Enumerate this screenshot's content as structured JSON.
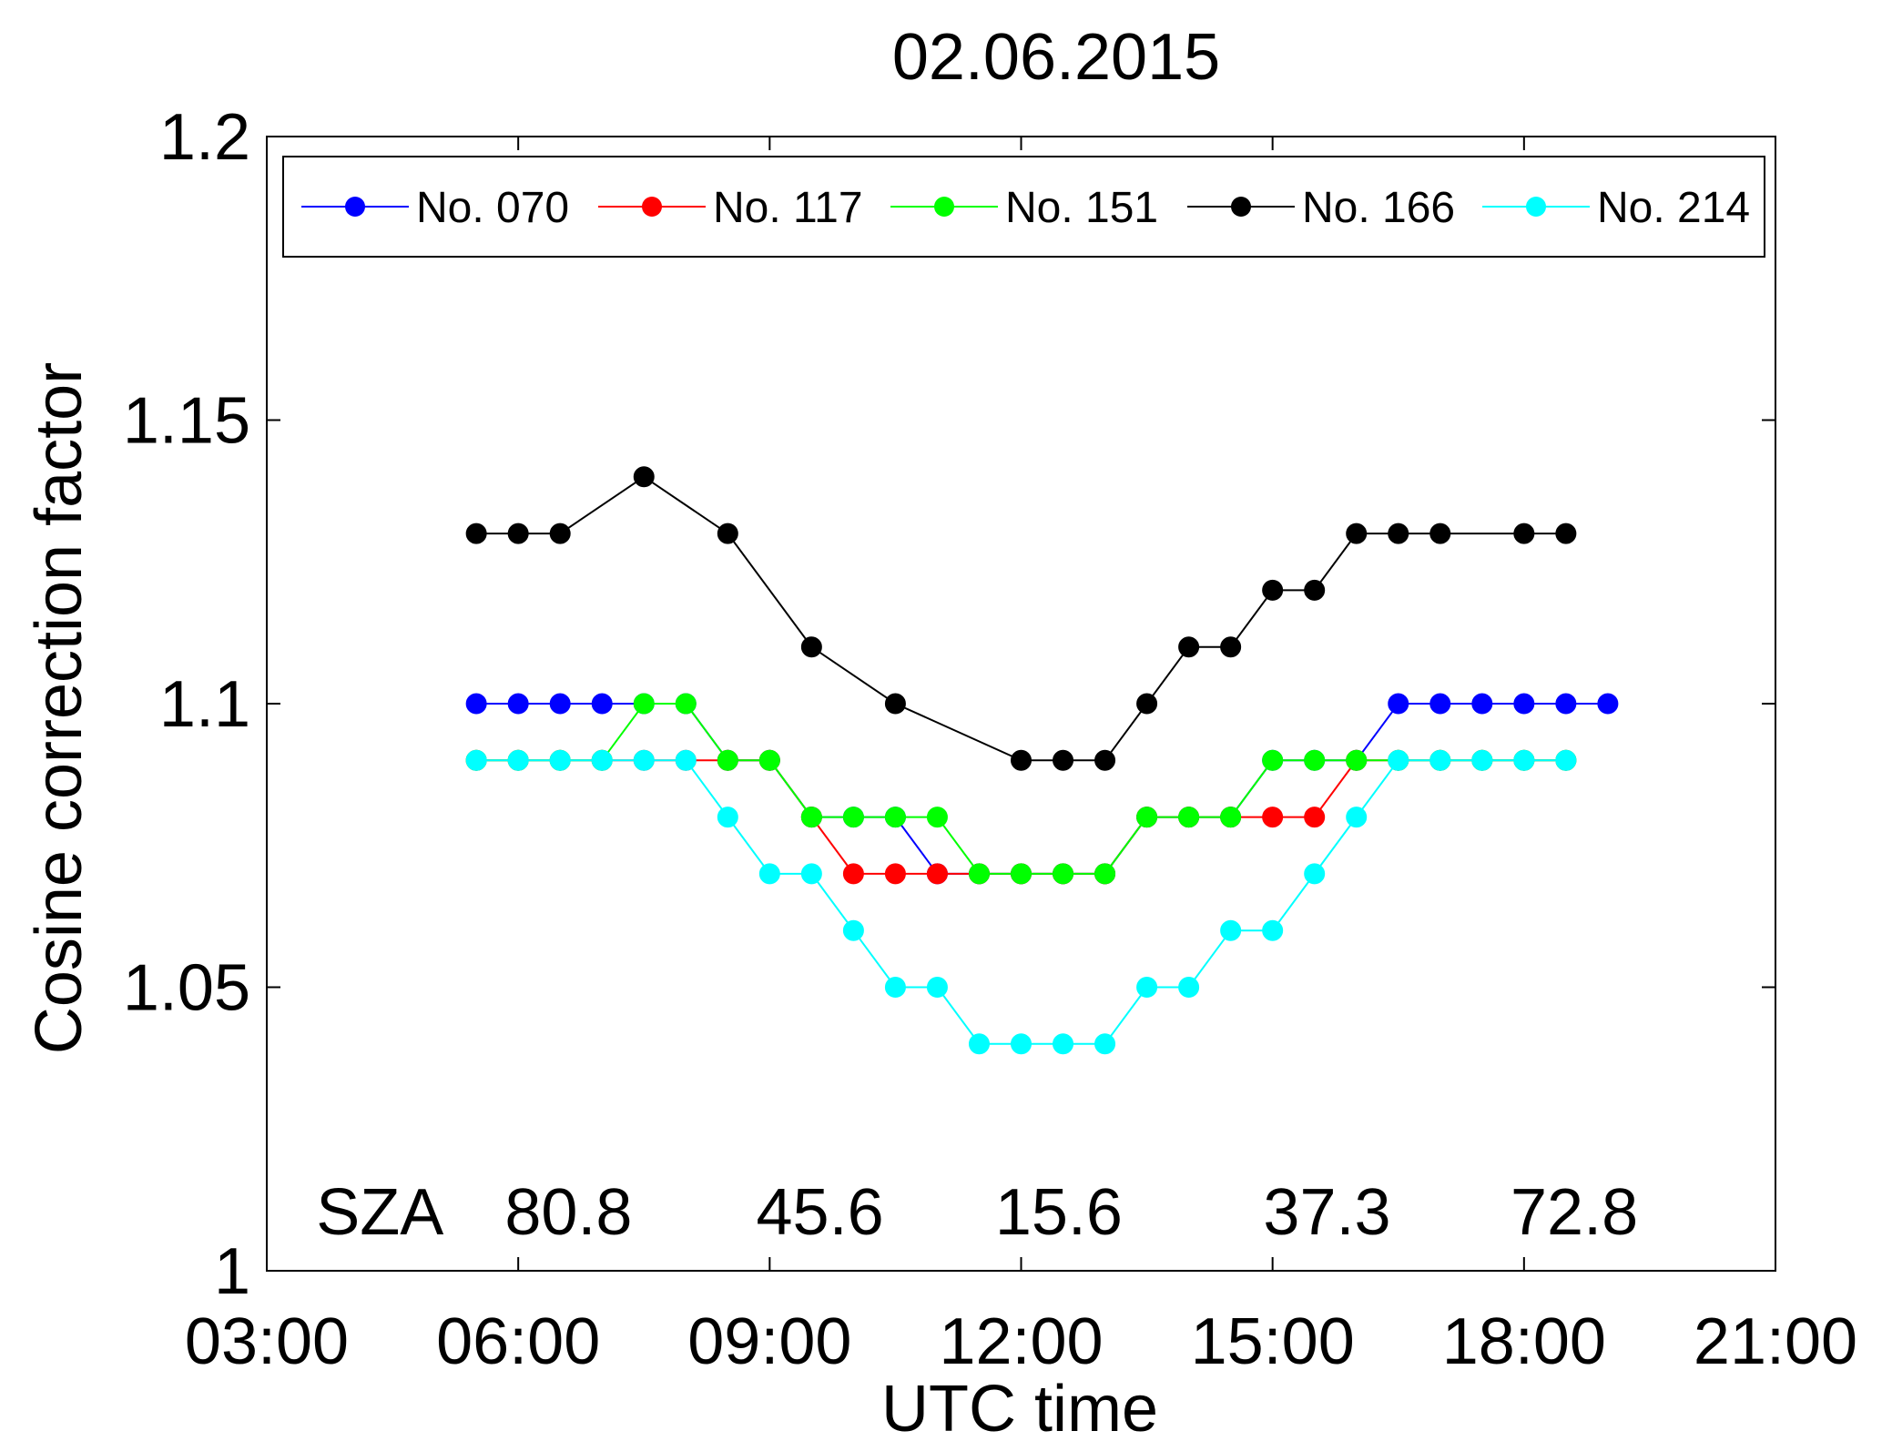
{
  "chart_data": {
    "type": "line",
    "title": "02.06.2015",
    "xlabel": "UTC time",
    "ylabel": "Cosine correction factor",
    "xlim": [
      3,
      21
    ],
    "ylim": [
      1.0,
      1.2
    ],
    "x_ticks": [
      3,
      6,
      9,
      12,
      15,
      18,
      21
    ],
    "x_tick_labels": [
      "03:00",
      "06:00",
      "09:00",
      "12:00",
      "15:00",
      "18:00",
      "21:00"
    ],
    "y_ticks": [
      1.0,
      1.05,
      1.1,
      1.15,
      1.2
    ],
    "y_tick_labels": [
      "1",
      "1.05",
      "1.1",
      "1.15",
      "1.2"
    ],
    "grid": false,
    "legend_position": "top",
    "sza_annotations": [
      {
        "text": "SZA",
        "x": 4.35
      },
      {
        "text": "80.8",
        "x": 6.6
      },
      {
        "text": "45.6",
        "x": 9.6
      },
      {
        "text": "15.6",
        "x": 12.45
      },
      {
        "text": "37.3",
        "x": 15.65
      },
      {
        "text": "72.8",
        "x": 18.6
      }
    ],
    "series": [
      {
        "name": "No. 070",
        "color": "#0000ff",
        "x": [
          5.5,
          6,
          6.5,
          7,
          7.5,
          8,
          8.5,
          9,
          9.5,
          10,
          10.5,
          11,
          11.5,
          12,
          12.5,
          13,
          13.5,
          14,
          14.5,
          15,
          15.5,
          16,
          16.5,
          17,
          17.5,
          18,
          18.5,
          19
        ],
        "y": [
          1.1,
          1.1,
          1.1,
          1.1,
          1.1,
          1.1,
          1.09,
          1.09,
          1.08,
          1.08,
          1.08,
          1.07,
          1.07,
          1.07,
          1.07,
          1.07,
          1.08,
          1.08,
          1.08,
          1.09,
          1.09,
          1.09,
          1.1,
          1.1,
          1.1,
          1.1,
          1.1,
          1.1
        ]
      },
      {
        "name": "No. 117",
        "color": "#ff0000",
        "x": [
          5.5,
          6,
          6.5,
          7,
          7.5,
          8,
          8.5,
          9,
          9.5,
          10,
          10.5,
          11,
          11.5,
          12,
          12.5,
          13,
          13.5,
          14,
          14.5,
          15,
          15.5,
          16,
          16.5,
          17,
          17.5,
          18,
          18.5
        ],
        "y": [
          1.09,
          1.09,
          1.09,
          1.09,
          1.09,
          1.09,
          1.09,
          1.09,
          1.08,
          1.07,
          1.07,
          1.07,
          1.07,
          1.07,
          1.07,
          1.07,
          1.08,
          1.08,
          1.08,
          1.08,
          1.08,
          1.09,
          1.09,
          1.09,
          1.09,
          1.09,
          1.09
        ]
      },
      {
        "name": "No. 151",
        "color": "#00ff00",
        "x": [
          5.5,
          6,
          6.5,
          7,
          7.5,
          8,
          8.5,
          9,
          9.5,
          10,
          10.5,
          11,
          11.5,
          12,
          12.5,
          13,
          13.5,
          14,
          14.5,
          15,
          15.5,
          16,
          16.5,
          17,
          17.5,
          18,
          18.5
        ],
        "y": [
          1.09,
          1.09,
          1.09,
          1.09,
          1.1,
          1.1,
          1.09,
          1.09,
          1.08,
          1.08,
          1.08,
          1.08,
          1.07,
          1.07,
          1.07,
          1.07,
          1.08,
          1.08,
          1.08,
          1.09,
          1.09,
          1.09,
          1.09,
          1.09,
          1.09,
          1.09,
          1.09
        ]
      },
      {
        "name": "No. 166",
        "color": "#000000",
        "x": [
          5.5,
          6,
          6.5,
          7.5,
          8.5,
          9.5,
          10.5,
          12,
          12.5,
          13,
          13.5,
          14,
          14.5,
          15,
          15.5,
          16,
          16.5,
          17,
          18,
          18.5
        ],
        "y": [
          1.13,
          1.13,
          1.13,
          1.14,
          1.13,
          1.11,
          1.1,
          1.09,
          1.09,
          1.09,
          1.1,
          1.11,
          1.11,
          1.12,
          1.12,
          1.13,
          1.13,
          1.13,
          1.13,
          1.13
        ]
      },
      {
        "name": "No. 214",
        "color": "#00ffff",
        "x": [
          5.5,
          6,
          6.5,
          7,
          7.5,
          8,
          8.5,
          9,
          9.5,
          10,
          10.5,
          11,
          11.5,
          12,
          12.5,
          13,
          13.5,
          14,
          14.5,
          15,
          15.5,
          16,
          16.5,
          17,
          17.5,
          18,
          18.5
        ],
        "y": [
          1.09,
          1.09,
          1.09,
          1.09,
          1.09,
          1.09,
          1.08,
          1.07,
          1.07,
          1.06,
          1.05,
          1.05,
          1.04,
          1.04,
          1.04,
          1.04,
          1.05,
          1.05,
          1.06,
          1.06,
          1.07,
          1.08,
          1.09,
          1.09,
          1.09,
          1.09,
          1.09
        ]
      }
    ]
  }
}
